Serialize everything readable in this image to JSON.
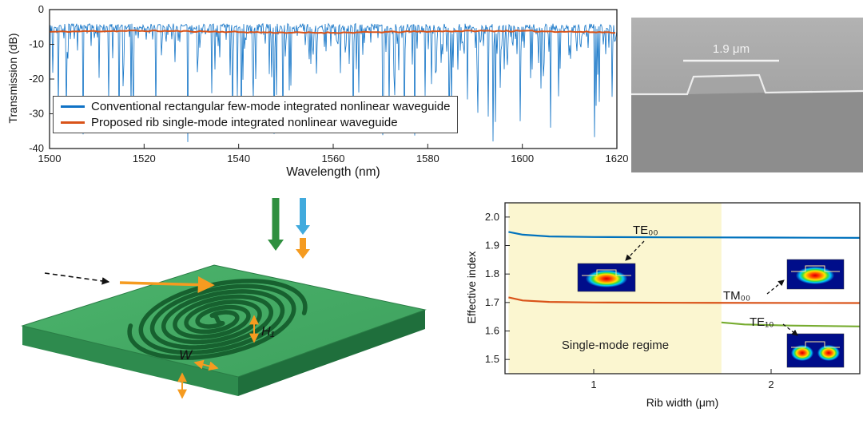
{
  "figure": {
    "background": "#ffffff"
  },
  "panel_sem": {
    "scale_label": "1.9 μm"
  },
  "panel_chip": {
    "width_label": "W",
    "height1_label": "H₁"
  },
  "chart_data": [
    {
      "type": "line",
      "title": "",
      "xlabel": "Wavelength (nm)",
      "ylabel": "Transmission (dB)",
      "xlim": [
        1500,
        1620
      ],
      "ylim": [
        -40,
        0
      ],
      "xticks": [
        1500,
        1520,
        1540,
        1560,
        1580,
        1600,
        1620
      ],
      "yticks": [
        0,
        -10,
        -20,
        -30,
        -40
      ],
      "grid": false,
      "legend_position": "inside-lower-left",
      "series": [
        {
          "name": "Conventional rectangular few-mode integrated nonlinear waveguide",
          "color": "#0f72c6",
          "style": "dense-noisy-spectrum",
          "baseline_db": -4.8,
          "ripple_db": 1.5,
          "dip_probability": 0.48,
          "dip_max_db": 32,
          "seed": 7
        },
        {
          "name": "Proposed rib single-mode integrated nonlinear waveguide",
          "color": "#d95319",
          "style": "smooth",
          "baseline_db": -6.4,
          "ripple_db": 0.35,
          "seed": 11
        }
      ]
    },
    {
      "type": "line",
      "title": "",
      "xlabel": "Rib width (μm)",
      "ylabel": "Effective index",
      "xlim": [
        0.5,
        2.5
      ],
      "ylim": [
        1.45,
        2.05
      ],
      "xticks": [
        1,
        2
      ],
      "yticks": [
        1.5,
        1.6,
        1.7,
        1.8,
        1.9,
        2.0
      ],
      "grid": false,
      "single_mode_region": {
        "label": "Single-mode regime",
        "x_range": [
          0.52,
          1.72
        ],
        "fill": "#fbf6d0"
      },
      "series": [
        {
          "name": "TE₀₀",
          "color": "#0072BD",
          "points": [
            [
              0.52,
              1.948
            ],
            [
              0.6,
              1.938
            ],
            [
              0.75,
              1.932
            ],
            [
              1.0,
              1.93
            ],
            [
              1.4,
              1.929
            ],
            [
              2.0,
              1.928
            ],
            [
              2.5,
              1.927
            ]
          ]
        },
        {
          "name": "TM₀₀",
          "color": "#D95319",
          "points": [
            [
              0.52,
              1.718
            ],
            [
              0.6,
              1.707
            ],
            [
              0.75,
              1.702
            ],
            [
              1.0,
              1.7
            ],
            [
              1.5,
              1.699
            ],
            [
              2.5,
              1.698
            ]
          ]
        },
        {
          "name": "TE₁₀",
          "color": "#77AC30",
          "points": [
            [
              1.72,
              1.63
            ],
            [
              1.85,
              1.623
            ],
            [
              2.1,
              1.619
            ],
            [
              2.5,
              1.616
            ]
          ]
        }
      ],
      "mode_profile_insets": [
        "TE₀₀",
        "TM₀₀",
        "TE₁₀"
      ]
    }
  ]
}
